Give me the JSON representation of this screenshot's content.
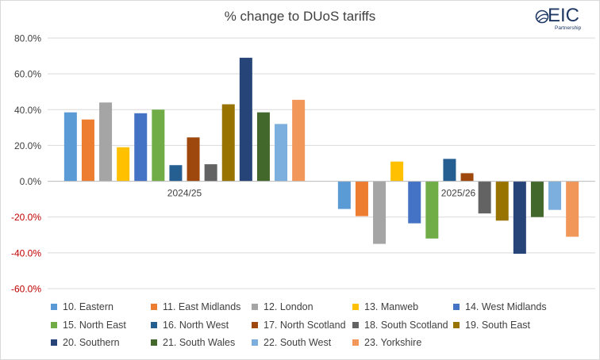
{
  "brand": {
    "logo_text": "EIC",
    "logo_subtitle": "Partnership"
  },
  "colors": {
    "negative_tick": "#c00000",
    "tick": "#404040",
    "grid": "#d9d9d9"
  },
  "chart_data": {
    "type": "bar",
    "title": "% change to DUoS tariffs",
    "xlabel": "",
    "ylabel": "",
    "ylim": [
      -60,
      80
    ],
    "yticks": [
      80,
      60,
      40,
      20,
      0,
      -20,
      -40,
      -60
    ],
    "ytick_labels": [
      "80.0%",
      "60.0%",
      "40.0%",
      "20.0%",
      "0.0%",
      "-20.0%",
      "-40.0%",
      "-60.0%"
    ],
    "categories": [
      "2024/25",
      "2025/26"
    ],
    "grid": true,
    "legend_position": "bottom",
    "series": [
      {
        "name": "10. Eastern",
        "color": "#5b9bd5",
        "values": [
          38.5,
          -15.5
        ]
      },
      {
        "name": "11. East Midlands",
        "color": "#ed7d31",
        "values": [
          34.5,
          -19.5
        ]
      },
      {
        "name": "12. London",
        "color": "#a5a5a5",
        "values": [
          44.0,
          -35.0
        ]
      },
      {
        "name": "13. Manweb",
        "color": "#ffc000",
        "values": [
          19.0,
          11.0
        ]
      },
      {
        "name": "14. West Midlands",
        "color": "#4472c4",
        "values": [
          38.0,
          -23.5
        ]
      },
      {
        "name": "15. North East",
        "color": "#70ad47",
        "values": [
          40.0,
          -32.0
        ]
      },
      {
        "name": "16. North West",
        "color": "#255e91",
        "values": [
          9.0,
          12.5
        ]
      },
      {
        "name": "17. North Scotland",
        "color": "#9e480e",
        "values": [
          24.5,
          4.5
        ]
      },
      {
        "name": "18. South Scotland",
        "color": "#636363",
        "values": [
          9.5,
          -18.0
        ]
      },
      {
        "name": "19. South East",
        "color": "#997300",
        "values": [
          43.0,
          -22.0
        ]
      },
      {
        "name": "20. Southern",
        "color": "#264478",
        "values": [
          69.0,
          -40.5
        ]
      },
      {
        "name": "21. South Wales",
        "color": "#43682b",
        "values": [
          38.5,
          -20.0
        ]
      },
      {
        "name": "22. South West",
        "color": "#7cafdd",
        "values": [
          32.0,
          -16.0
        ]
      },
      {
        "name": "23. Yorkshire",
        "color": "#f1975a",
        "values": [
          45.5,
          -31.0
        ]
      }
    ]
  }
}
